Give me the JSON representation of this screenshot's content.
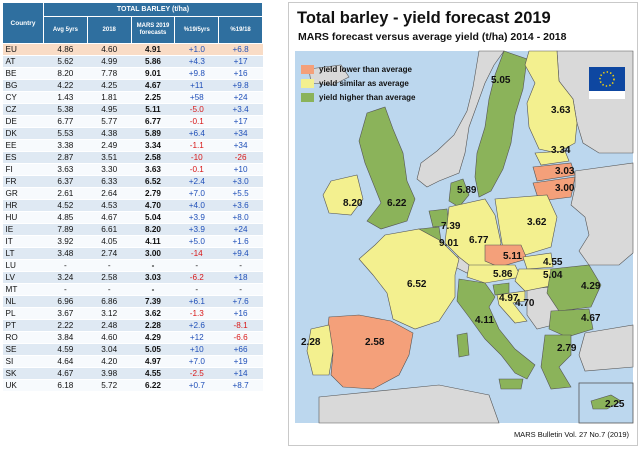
{
  "table": {
    "country_header": "Country",
    "super_header": "TOTAL BARLEY (t/ha)",
    "columns": [
      "Avg 5yrs",
      "2018",
      "MARS 2019 forecasts",
      "%19/5yrs",
      "%19/18"
    ],
    "rows": [
      {
        "country": "EU",
        "avg": "4.86",
        "y2018": "4.60",
        "mars": "4.91",
        "p5": "+1.0",
        "p18": "+6.8"
      },
      {
        "country": "AT",
        "avg": "5.62",
        "y2018": "4.99",
        "mars": "5.86",
        "p5": "+4.3",
        "p18": "+17"
      },
      {
        "country": "BE",
        "avg": "8.20",
        "y2018": "7.78",
        "mars": "9.01",
        "p5": "+9.8",
        "p18": "+16"
      },
      {
        "country": "BG",
        "avg": "4.22",
        "y2018": "4.25",
        "mars": "4.67",
        "p5": "+11",
        "p18": "+9.8"
      },
      {
        "country": "CY",
        "avg": "1.43",
        "y2018": "1.81",
        "mars": "2.25",
        "p5": "+58",
        "p18": "+24"
      },
      {
        "country": "CZ",
        "avg": "5.38",
        "y2018": "4.95",
        "mars": "5.11",
        "p5": "-5.0",
        "p18": "+3.4"
      },
      {
        "country": "DE",
        "avg": "6.77",
        "y2018": "5.77",
        "mars": "6.77",
        "p5": "-0.1",
        "p18": "+17"
      },
      {
        "country": "DK",
        "avg": "5.53",
        "y2018": "4.38",
        "mars": "5.89",
        "p5": "+6.4",
        "p18": "+34"
      },
      {
        "country": "EE",
        "avg": "3.38",
        "y2018": "2.49",
        "mars": "3.34",
        "p5": "-1.1",
        "p18": "+34"
      },
      {
        "country": "ES",
        "avg": "2.87",
        "y2018": "3.51",
        "mars": "2.58",
        "p5": "-10",
        "p18": "-26"
      },
      {
        "country": "FI",
        "avg": "3.63",
        "y2018": "3.30",
        "mars": "3.63",
        "p5": "-0.1",
        "p18": "+10"
      },
      {
        "country": "FR",
        "avg": "6.37",
        "y2018": "6.33",
        "mars": "6.52",
        "p5": "+2.4",
        "p18": "+3.0"
      },
      {
        "country": "GR",
        "avg": "2.61",
        "y2018": "2.64",
        "mars": "2.79",
        "p5": "+7.0",
        "p18": "+5.5"
      },
      {
        "country": "HR",
        "avg": "4.52",
        "y2018": "4.53",
        "mars": "4.70",
        "p5": "+4.0",
        "p18": "+3.6"
      },
      {
        "country": "HU",
        "avg": "4.85",
        "y2018": "4.67",
        "mars": "5.04",
        "p5": "+3.9",
        "p18": "+8.0"
      },
      {
        "country": "IE",
        "avg": "7.89",
        "y2018": "6.61",
        "mars": "8.20",
        "p5": "+3.9",
        "p18": "+24"
      },
      {
        "country": "IT",
        "avg": "3.92",
        "y2018": "4.05",
        "mars": "4.11",
        "p5": "+5.0",
        "p18": "+1.6"
      },
      {
        "country": "LT",
        "avg": "3.48",
        "y2018": "2.74",
        "mars": "3.00",
        "p5": "-14",
        "p18": "+9.4"
      },
      {
        "country": "LU",
        "avg": "-",
        "y2018": "-",
        "mars": "-",
        "p5": "-",
        "p18": "-"
      },
      {
        "country": "LV",
        "avg": "3.24",
        "y2018": "2.58",
        "mars": "3.03",
        "p5": "-6.2",
        "p18": "+18"
      },
      {
        "country": "MT",
        "avg": "-",
        "y2018": "-",
        "mars": "-",
        "p5": "-",
        "p18": "-"
      },
      {
        "country": "NL",
        "avg": "6.96",
        "y2018": "6.86",
        "mars": "7.39",
        "p5": "+6.1",
        "p18": "+7.6"
      },
      {
        "country": "PL",
        "avg": "3.67",
        "y2018": "3.12",
        "mars": "3.62",
        "p5": "-1.3",
        "p18": "+16"
      },
      {
        "country": "PT",
        "avg": "2.22",
        "y2018": "2.48",
        "mars": "2.28",
        "p5": "+2.6",
        "p18": "-8.1"
      },
      {
        "country": "RO",
        "avg": "3.84",
        "y2018": "4.60",
        "mars": "4.29",
        "p5": "+12",
        "p18": "-6.6"
      },
      {
        "country": "SE",
        "avg": "4.59",
        "y2018": "3.04",
        "mars": "5.05",
        "p5": "+10",
        "p18": "+66"
      },
      {
        "country": "SI",
        "avg": "4.64",
        "y2018": "4.20",
        "mars": "4.97",
        "p5": "+7.0",
        "p18": "+19"
      },
      {
        "country": "SK",
        "avg": "4.67",
        "y2018": "3.98",
        "mars": "4.55",
        "p5": "-2.5",
        "p18": "+14"
      },
      {
        "country": "UK",
        "avg": "6.18",
        "y2018": "5.72",
        "mars": "6.22",
        "p5": "+0.7",
        "p18": "+8.7"
      }
    ]
  },
  "map": {
    "title": "Total barley - yield forecast 2019",
    "subtitle": "MARS forecast versus average yield (t/ha) 2014 - 2018",
    "legend": [
      {
        "label": "yield lower than average",
        "color": "#f4a07a"
      },
      {
        "label": "yield similar as average",
        "color": "#f3f08f"
      },
      {
        "label": "yield higher than average",
        "color": "#8bb35a"
      }
    ],
    "colors": {
      "lower": "#f4a07a",
      "similar": "#f3f08f",
      "higher": "#8bb35a",
      "non_eu": "#d9d9d9",
      "sea": "#bcd7ee",
      "border": "#555555"
    },
    "labels": [
      {
        "country": "SE",
        "value": "5.05"
      },
      {
        "country": "FI",
        "value": "3.63"
      },
      {
        "country": "EE",
        "value": "3.34"
      },
      {
        "country": "LV",
        "value": "3.03"
      },
      {
        "country": "LT",
        "value": "3.00"
      },
      {
        "country": "DK",
        "value": "5.89"
      },
      {
        "country": "IE",
        "value": "8.20"
      },
      {
        "country": "UK",
        "value": "6.22"
      },
      {
        "country": "NL",
        "value": "7.39"
      },
      {
        "country": "BE",
        "value": "9.01"
      },
      {
        "country": "DE",
        "value": "6.77"
      },
      {
        "country": "PL",
        "value": "3.62"
      },
      {
        "country": "CZ",
        "value": "5.11"
      },
      {
        "country": "SK",
        "value": "4.55"
      },
      {
        "country": "AT",
        "value": "5.86"
      },
      {
        "country": "HU",
        "value": "5.04"
      },
      {
        "country": "SI",
        "value": "4.97"
      },
      {
        "country": "HR",
        "value": "4.70"
      },
      {
        "country": "FR",
        "value": "6.52"
      },
      {
        "country": "RO",
        "value": "4.29"
      },
      {
        "country": "BG",
        "value": "4.67"
      },
      {
        "country": "IT",
        "value": "4.11"
      },
      {
        "country": "ES",
        "value": "2.58"
      },
      {
        "country": "PT",
        "value": "2.28"
      },
      {
        "country": "GR",
        "value": "2.79"
      },
      {
        "country": "CY",
        "value": "2.25"
      }
    ],
    "footer": "MARS Bulletin Vol. 27 No.7 (2019)",
    "eu_logo_text": "European Commission"
  }
}
